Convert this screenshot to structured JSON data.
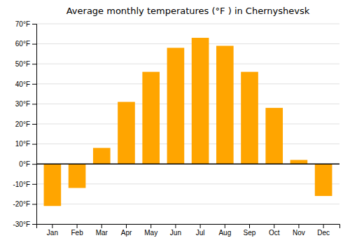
{
  "chart_data": {
    "type": "bar",
    "title": "Average monthly temperatures (°F ) in Chernyshevsk",
    "categories": [
      "Jan",
      "Feb",
      "Mar",
      "Apr",
      "May",
      "Jun",
      "Jul",
      "Aug",
      "Sep",
      "Oct",
      "Nov",
      "Dec"
    ],
    "values": [
      -21,
      -12,
      8,
      31,
      46,
      58,
      63,
      59,
      46,
      28,
      2,
      -16
    ],
    "color": "#FFA500",
    "ylim": [
      -30,
      70
    ],
    "yticks": [
      {
        "value": -30,
        "label": "-30°F"
      },
      {
        "value": -20,
        "label": "-20°F"
      },
      {
        "value": -10,
        "label": "-10°F"
      },
      {
        "value": 0,
        "label": "0°F"
      },
      {
        "value": 10,
        "label": "10°F"
      },
      {
        "value": 20,
        "label": "20°F"
      },
      {
        "value": 30,
        "label": "30°F"
      },
      {
        "value": 40,
        "label": "40°F"
      },
      {
        "value": 50,
        "label": "50°F"
      },
      {
        "value": 60,
        "label": "60°F"
      },
      {
        "value": 70,
        "label": "70°F"
      }
    ],
    "grid": true
  }
}
